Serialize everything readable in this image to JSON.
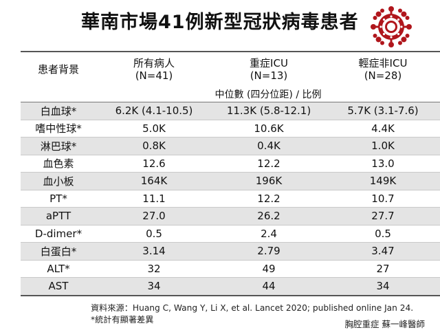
{
  "title": "華南市場41例新型冠狀病毒患者",
  "header": {
    "background": "患者背景",
    "cols": [
      {
        "line1": "所有病人",
        "line2": "(N=41)"
      },
      {
        "line1": "重症ICU",
        "line2": "(N=13)"
      },
      {
        "line1": "輕症非ICU",
        "line2": "(N=28)"
      }
    ],
    "subheader": "中位數 (四分位距) / 比例"
  },
  "rows": [
    {
      "label": "白血球*",
      "values": [
        "6.2K (4.1-10.5)",
        "11.3K (5.8-12.1)",
        "5.7K (3.1-7.6)"
      ]
    },
    {
      "label": "嗜中性球*",
      "values": [
        "5.0K",
        "10.6K",
        "4.4K"
      ]
    },
    {
      "label": "淋巴球*",
      "values": [
        "0.8K",
        "0.4K",
        "1.0K"
      ]
    },
    {
      "label": "血色素",
      "values": [
        "12.6",
        "12.2",
        "13.0"
      ]
    },
    {
      "label": "血小板",
      "values": [
        "164K",
        "196K",
        "149K"
      ]
    },
    {
      "label": "PT*",
      "values": [
        "11.1",
        "12.2",
        "10.7"
      ]
    },
    {
      "label": "aPTT",
      "values": [
        "27.0",
        "26.2",
        "27.7"
      ]
    },
    {
      "label": "D-dimer*",
      "values": [
        "0.5",
        "2.4",
        "0.5"
      ]
    },
    {
      "label": "白蛋白*",
      "values": [
        "3.14",
        "2.79",
        "3.47"
      ]
    },
    {
      "label": "ALT*",
      "values": [
        "32",
        "49",
        "27"
      ]
    },
    {
      "label": "AST",
      "values": [
        "34",
        "44",
        "34"
      ]
    }
  ],
  "footnote": "資料來源：Huang C, Wang Y, Li X, et al. Lancet 2020; published online Jan 24.",
  "note": "*統計有顯著差異",
  "credit": "胸腔重症  蘇一峰醫師",
  "colors": {
    "alt_row": "#e4e4e4",
    "virus": "#b0161c"
  }
}
